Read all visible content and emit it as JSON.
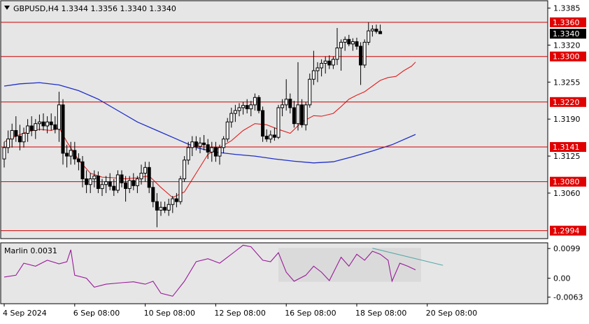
{
  "window": {
    "symbol_line": "GBPUSD,H4  1.3344  1.3356  1.3340  1.3340"
  },
  "colors": {
    "background": "#ffffff",
    "plot_background": "#e6e6e6",
    "frame": "#000000",
    "grid": "#ffffff",
    "bull_candle": "#ffffff",
    "bear_candle": "#000000",
    "fast_ma": "#e02020",
    "slow_ma": "#1f2fc8",
    "level_line": "#d00000",
    "level_label_bg": "#e00000",
    "level_label_text": "#ffffff",
    "current_price_bg": "#000000",
    "marlin_line": "#9a1a9a",
    "divergence_line": "#5aa8a8",
    "highlight_box": "#cfcfcf"
  },
  "chart_data": [
    {
      "type": "candlestick",
      "title": "GBPUSD,H4  1.3344  1.3356  1.3340  1.3340",
      "ylim": [
        1.298,
        1.3398
      ],
      "price_ticks": [
        "1.3385",
        "1.3320",
        "1.3255",
        "1.3190",
        "1.3125",
        "1.3060"
      ],
      "x_labels": [
        {
          "label": "4 Sep 2024",
          "index": 0
        },
        {
          "label": "6 Sep 08:00",
          "index": 18
        },
        {
          "label": "10 Sep 08:00",
          "index": 36
        },
        {
          "label": "12 Sep 08:00",
          "index": 54
        },
        {
          "label": "16 Sep 08:00",
          "index": 72
        },
        {
          "label": "18 Sep 08:00",
          "index": 90
        },
        {
          "label": "20 Sep 08:00",
          "index": 108
        }
      ],
      "levels": [
        {
          "value": 1.336,
          "label": "1.3360"
        },
        {
          "value": 1.33,
          "label": "1.3300"
        },
        {
          "value": 1.322,
          "label": "1.3220"
        },
        {
          "value": 1.3141,
          "label": "1.3141"
        },
        {
          "value": 1.308,
          "label": "1.3080"
        },
        {
          "value": 1.2994,
          "label": "1.2994"
        }
      ],
      "current_price": {
        "value": 1.334,
        "label": "1.3340"
      },
      "ohlc": [
        [
          1.312,
          1.315,
          1.3105,
          1.314
        ],
        [
          1.314,
          1.317,
          1.313,
          1.3155
        ],
        [
          1.3155,
          1.3182,
          1.314,
          1.317
        ],
        [
          1.317,
          1.3195,
          1.315,
          1.316
        ],
        [
          1.316,
          1.318,
          1.3135,
          1.315
        ],
        [
          1.315,
          1.3175,
          1.314,
          1.3165
        ],
        [
          1.3165,
          1.319,
          1.315,
          1.3178
        ],
        [
          1.3178,
          1.3195,
          1.316,
          1.317
        ],
        [
          1.317,
          1.319,
          1.3155,
          1.3182
        ],
        [
          1.3182,
          1.3198,
          1.317,
          1.3185
        ],
        [
          1.3185,
          1.32,
          1.317,
          1.3178
        ],
        [
          1.3178,
          1.3195,
          1.3165,
          1.3185
        ],
        [
          1.3185,
          1.32,
          1.317,
          1.318
        ],
        [
          1.318,
          1.3195,
          1.3165,
          1.3172
        ],
        [
          1.3172,
          1.3238,
          1.315,
          1.3215
        ],
        [
          1.3215,
          1.3225,
          1.311,
          1.313
        ],
        [
          1.313,
          1.3145,
          1.3105,
          1.3125
        ],
        [
          1.3125,
          1.315,
          1.311,
          1.3135
        ],
        [
          1.3135,
          1.315,
          1.311,
          1.312
        ],
        [
          1.312,
          1.313,
          1.31,
          1.3115
        ],
        [
          1.3115,
          1.3125,
          1.307,
          1.3085
        ],
        [
          1.3085,
          1.31,
          1.306,
          1.3075
        ],
        [
          1.3075,
          1.3095,
          1.306,
          1.3085
        ],
        [
          1.3085,
          1.31,
          1.307,
          1.309
        ],
        [
          1.309,
          1.3098,
          1.306,
          1.3068
        ],
        [
          1.3068,
          1.3085,
          1.3055,
          1.3075
        ],
        [
          1.3075,
          1.309,
          1.306,
          1.308
        ],
        [
          1.308,
          1.3095,
          1.3065,
          1.3072
        ],
        [
          1.3072,
          1.3085,
          1.3055,
          1.3065
        ],
        [
          1.3065,
          1.31,
          1.306,
          1.3092
        ],
        [
          1.3092,
          1.31,
          1.307,
          1.3078
        ],
        [
          1.3078,
          1.309,
          1.3045,
          1.3068
        ],
        [
          1.3068,
          1.309,
          1.306,
          1.3082
        ],
        [
          1.3082,
          1.3095,
          1.3065,
          1.3073
        ],
        [
          1.3073,
          1.309,
          1.306,
          1.3085
        ],
        [
          1.3085,
          1.311,
          1.3075,
          1.3095
        ],
        [
          1.3095,
          1.3115,
          1.308,
          1.3105
        ],
        [
          1.3105,
          1.3115,
          1.306,
          1.307
        ],
        [
          1.307,
          1.308,
          1.3035,
          1.3045
        ],
        [
          1.3045,
          1.306,
          1.3,
          1.303
        ],
        [
          1.303,
          1.3045,
          1.302,
          1.3035
        ],
        [
          1.3035,
          1.3045,
          1.3025,
          1.303
        ],
        [
          1.303,
          1.305,
          1.302,
          1.304
        ],
        [
          1.304,
          1.3055,
          1.3025,
          1.305
        ],
        [
          1.305,
          1.306,
          1.3035,
          1.3045
        ],
        [
          1.3045,
          1.309,
          1.304,
          1.3085
        ],
        [
          1.3085,
          1.3125,
          1.308,
          1.3118
        ],
        [
          1.3118,
          1.315,
          1.311,
          1.314
        ],
        [
          1.314,
          1.316,
          1.3125,
          1.315
        ],
        [
          1.315,
          1.316,
          1.3135,
          1.3142
        ],
        [
          1.3142,
          1.3158,
          1.313,
          1.3148
        ],
        [
          1.3148,
          1.3162,
          1.3135,
          1.3145
        ],
        [
          1.3145,
          1.3155,
          1.312,
          1.3132
        ],
        [
          1.3132,
          1.315,
          1.3115,
          1.314
        ],
        [
          1.314,
          1.315,
          1.3115,
          1.3125
        ],
        [
          1.3125,
          1.3145,
          1.311,
          1.314
        ],
        [
          1.314,
          1.316,
          1.313,
          1.3155
        ],
        [
          1.3155,
          1.3192,
          1.315,
          1.3185
        ],
        [
          1.3185,
          1.321,
          1.3175,
          1.32
        ],
        [
          1.32,
          1.3215,
          1.3185,
          1.3205
        ],
        [
          1.3205,
          1.3218,
          1.3195,
          1.321
        ],
        [
          1.321,
          1.322,
          1.3198,
          1.3214
        ],
        [
          1.3214,
          1.3225,
          1.32,
          1.3208
        ],
        [
          1.3208,
          1.3222,
          1.3195,
          1.3215
        ],
        [
          1.3215,
          1.3235,
          1.3205,
          1.3228
        ],
        [
          1.3228,
          1.3232,
          1.32,
          1.3205
        ],
        [
          1.3205,
          1.3212,
          1.315,
          1.316
        ],
        [
          1.316,
          1.3172,
          1.315,
          1.3155
        ],
        [
          1.3155,
          1.317,
          1.3148,
          1.3162
        ],
        [
          1.3162,
          1.3175,
          1.3152,
          1.3158
        ],
        [
          1.3158,
          1.3215,
          1.3155,
          1.321
        ],
        [
          1.321,
          1.3225,
          1.3195,
          1.3215
        ],
        [
          1.3215,
          1.326,
          1.3205,
          1.3225
        ],
        [
          1.3225,
          1.3235,
          1.32,
          1.321
        ],
        [
          1.321,
          1.3222,
          1.3175,
          1.3182
        ],
        [
          1.3182,
          1.329,
          1.317,
          1.3215
        ],
        [
          1.3215,
          1.3225,
          1.3175,
          1.318
        ],
        [
          1.318,
          1.322,
          1.317,
          1.3215
        ],
        [
          1.3215,
          1.327,
          1.321,
          1.326
        ],
        [
          1.326,
          1.331,
          1.325,
          1.3275
        ],
        [
          1.3275,
          1.329,
          1.3255,
          1.328
        ],
        [
          1.328,
          1.3295,
          1.3265,
          1.3288
        ],
        [
          1.3288,
          1.33,
          1.327,
          1.3292
        ],
        [
          1.3292,
          1.3302,
          1.3278,
          1.3285
        ],
        [
          1.3285,
          1.33,
          1.3278,
          1.3295
        ],
        [
          1.3295,
          1.335,
          1.3285,
          1.3315
        ],
        [
          1.3315,
          1.333,
          1.3275,
          1.3325
        ],
        [
          1.3325,
          1.3335,
          1.331,
          1.333
        ],
        [
          1.333,
          1.3338,
          1.3318,
          1.3322
        ],
        [
          1.3322,
          1.3332,
          1.331,
          1.3326
        ],
        [
          1.3326,
          1.3333,
          1.3312,
          1.3318
        ],
        [
          1.3318,
          1.3325,
          1.325,
          1.3285
        ],
        [
          1.3285,
          1.333,
          1.328,
          1.3325
        ],
        [
          1.3325,
          1.336,
          1.332,
          1.3345
        ],
        [
          1.3345,
          1.3355,
          1.3335,
          1.3348
        ],
        [
          1.3348,
          1.3356,
          1.334,
          1.3344
        ],
        [
          1.3344,
          1.3356,
          1.334,
          1.334
        ]
      ],
      "fast_ma": [
        [
          0,
          1.315
        ],
        [
          3,
          1.316
        ],
        [
          6,
          1.3168
        ],
        [
          9,
          1.3172
        ],
        [
          12,
          1.317
        ],
        [
          14,
          1.3175
        ],
        [
          16,
          1.315
        ],
        [
          19,
          1.3118
        ],
        [
          22,
          1.3095
        ],
        [
          25,
          1.3088
        ],
        [
          28,
          1.3087
        ],
        [
          31,
          1.3085
        ],
        [
          34,
          1.3087
        ],
        [
          37,
          1.309
        ],
        [
          40,
          1.307
        ],
        [
          43,
          1.3052
        ],
        [
          46,
          1.3062
        ],
        [
          49,
          1.3095
        ],
        [
          52,
          1.3128
        ],
        [
          55,
          1.314
        ],
        [
          58,
          1.3152
        ],
        [
          61,
          1.317
        ],
        [
          64,
          1.3182
        ],
        [
          67,
          1.318
        ],
        [
          70,
          1.3172
        ],
        [
          73,
          1.3165
        ],
        [
          76,
          1.3185
        ],
        [
          79,
          1.3196
        ],
        [
          81,
          1.3195
        ],
        [
          84,
          1.32
        ],
        [
          86,
          1.3212
        ],
        [
          88,
          1.3225
        ],
        [
          90,
          1.3232
        ],
        [
          92,
          1.3238
        ],
        [
          94,
          1.3248
        ],
        [
          96,
          1.3258
        ],
        [
          98,
          1.3263
        ],
        [
          100,
          1.3265
        ],
        [
          102,
          1.3275
        ],
        [
          104,
          1.3283
        ],
        [
          105,
          1.329
        ]
      ],
      "slow_ma": [
        [
          0,
          1.3248
        ],
        [
          4,
          1.3252
        ],
        [
          9,
          1.3254
        ],
        [
          14,
          1.325
        ],
        [
          19,
          1.324
        ],
        [
          24,
          1.3225
        ],
        [
          29,
          1.3205
        ],
        [
          34,
          1.3185
        ],
        [
          39,
          1.317
        ],
        [
          44,
          1.3155
        ],
        [
          49,
          1.314
        ],
        [
          54,
          1.3132
        ],
        [
          59,
          1.3128
        ],
        [
          64,
          1.3125
        ],
        [
          69,
          1.312
        ],
        [
          74,
          1.3116
        ],
        [
          79,
          1.3113
        ],
        [
          84,
          1.3115
        ],
        [
          89,
          1.3124
        ],
        [
          94,
          1.3134
        ],
        [
          99,
          1.3145
        ],
        [
          105,
          1.3163
        ]
      ],
      "marlin": {
        "label": "Marlin 0.0031",
        "ticks": [
          "0.0099",
          "0.00",
          "-0.0063"
        ],
        "ylim": [
          -0.0085,
          0.0118
        ],
        "values": [
          [
            0,
            0.0004
          ],
          [
            3,
            0.001
          ],
          [
            5,
            0.005
          ],
          [
            8,
            0.004
          ],
          [
            11,
            0.006
          ],
          [
            14,
            0.0048
          ],
          [
            16,
            0.0055
          ],
          [
            17,
            0.0095
          ],
          [
            18,
            0.001
          ],
          [
            21,
            0.0
          ],
          [
            23,
            -0.003
          ],
          [
            26,
            -0.002
          ],
          [
            30,
            -0.0015
          ],
          [
            33,
            -0.0012
          ],
          [
            36,
            -0.002
          ],
          [
            38,
            -0.001
          ],
          [
            40,
            -0.005
          ],
          [
            43,
            -0.006
          ],
          [
            46,
            -0.001
          ],
          [
            49,
            0.0055
          ],
          [
            52,
            0.0065
          ],
          [
            55,
            0.005
          ],
          [
            57,
            0.007
          ],
          [
            59,
            0.009
          ],
          [
            61,
            0.011
          ],
          [
            63,
            0.0105
          ],
          [
            66,
            0.006
          ],
          [
            68,
            0.0055
          ],
          [
            70,
            0.0085
          ],
          [
            72,
            0.002
          ],
          [
            74,
            -0.001
          ],
          [
            77,
            0.001
          ],
          [
            79,
            0.004
          ],
          [
            81,
            0.002
          ],
          [
            83,
            -0.0008
          ],
          [
            86,
            0.007
          ],
          [
            88,
            0.004
          ],
          [
            90,
            0.008
          ],
          [
            92,
            0.006
          ],
          [
            94,
            0.009
          ],
          [
            96,
            0.008
          ],
          [
            98,
            0.006
          ],
          [
            99,
            -0.001
          ],
          [
            101,
            0.005
          ],
          [
            103,
            0.004
          ],
          [
            105,
            0.0028
          ]
        ],
        "divergence": [
          [
            94,
            0.01
          ],
          [
            112,
            0.0043
          ]
        ],
        "highlight_x": [
          70,
          105
        ]
      }
    }
  ]
}
